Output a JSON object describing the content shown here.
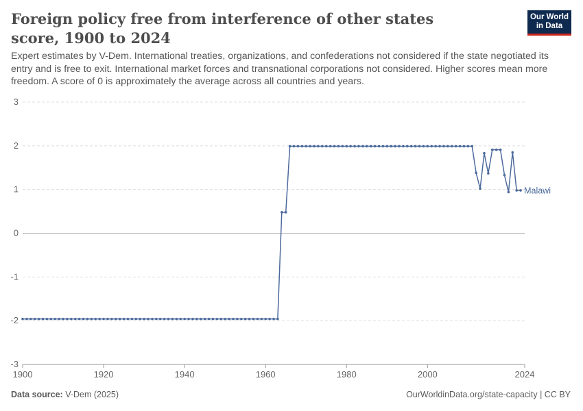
{
  "header": {
    "title": "Foreign policy free from interference of other states score, 1900 to 2024",
    "subtitle": "Expert estimates by V-Dem. International treaties, organizations, and confederations not considered if the state negotiated its entry and is free to exit. International market forces and transnational corporations not considered. Higher scores mean more freedom. A score of 0 is approximately the average across all countries and years.",
    "logo_line1": "Our World",
    "logo_line2": "in Data"
  },
  "footer": {
    "source_label": "Data source:",
    "source_value": "V-Dem (2025)",
    "credit": "OurWorldinData.org/state-capacity | CC BY"
  },
  "colors": {
    "series": "#4c6a9c",
    "grid": "#dddddd",
    "zero_line": "#b3b3b3",
    "text": "#666666",
    "logo_bg": "#0f2a4f",
    "logo_accent": "#ce261e"
  },
  "chart_data": {
    "type": "line",
    "title": "Foreign policy free from interference of other states score, 1900 to 2024",
    "xlabel": "",
    "ylabel": "",
    "xlim": [
      1900,
      2024
    ],
    "ylim": [
      -3,
      3
    ],
    "x_ticks": [
      1900,
      1920,
      1940,
      1960,
      1980,
      2000,
      2024
    ],
    "y_ticks": [
      -3,
      -2,
      -1,
      0,
      1,
      2,
      3
    ],
    "grid": true,
    "legend": "end-of-line label",
    "series": [
      {
        "name": "Malawi",
        "points": [
          [
            1900,
            -1.96
          ],
          [
            1901,
            -1.96
          ],
          [
            1902,
            -1.96
          ],
          [
            1903,
            -1.96
          ],
          [
            1904,
            -1.96
          ],
          [
            1905,
            -1.96
          ],
          [
            1906,
            -1.96
          ],
          [
            1907,
            -1.96
          ],
          [
            1908,
            -1.96
          ],
          [
            1909,
            -1.96
          ],
          [
            1910,
            -1.96
          ],
          [
            1911,
            -1.96
          ],
          [
            1912,
            -1.96
          ],
          [
            1913,
            -1.96
          ],
          [
            1914,
            -1.96
          ],
          [
            1915,
            -1.96
          ],
          [
            1916,
            -1.96
          ],
          [
            1917,
            -1.96
          ],
          [
            1918,
            -1.96
          ],
          [
            1919,
            -1.96
          ],
          [
            1920,
            -1.96
          ],
          [
            1921,
            -1.96
          ],
          [
            1922,
            -1.96
          ],
          [
            1923,
            -1.96
          ],
          [
            1924,
            -1.96
          ],
          [
            1925,
            -1.96
          ],
          [
            1926,
            -1.96
          ],
          [
            1927,
            -1.96
          ],
          [
            1928,
            -1.96
          ],
          [
            1929,
            -1.96
          ],
          [
            1930,
            -1.96
          ],
          [
            1931,
            -1.96
          ],
          [
            1932,
            -1.96
          ],
          [
            1933,
            -1.96
          ],
          [
            1934,
            -1.96
          ],
          [
            1935,
            -1.96
          ],
          [
            1936,
            -1.96
          ],
          [
            1937,
            -1.96
          ],
          [
            1938,
            -1.96
          ],
          [
            1939,
            -1.96
          ],
          [
            1940,
            -1.96
          ],
          [
            1941,
            -1.96
          ],
          [
            1942,
            -1.96
          ],
          [
            1943,
            -1.96
          ],
          [
            1944,
            -1.96
          ],
          [
            1945,
            -1.96
          ],
          [
            1946,
            -1.96
          ],
          [
            1947,
            -1.96
          ],
          [
            1948,
            -1.96
          ],
          [
            1949,
            -1.96
          ],
          [
            1950,
            -1.96
          ],
          [
            1951,
            -1.96
          ],
          [
            1952,
            -1.96
          ],
          [
            1953,
            -1.96
          ],
          [
            1954,
            -1.96
          ],
          [
            1955,
            -1.96
          ],
          [
            1956,
            -1.96
          ],
          [
            1957,
            -1.96
          ],
          [
            1958,
            -1.96
          ],
          [
            1959,
            -1.96
          ],
          [
            1960,
            -1.96
          ],
          [
            1961,
            -1.96
          ],
          [
            1962,
            -1.96
          ],
          [
            1963,
            -1.96
          ],
          [
            1964,
            0.48
          ],
          [
            1965,
            0.48
          ],
          [
            1966,
            1.99
          ],
          [
            1967,
            1.99
          ],
          [
            1968,
            1.99
          ],
          [
            1969,
            1.99
          ],
          [
            1970,
            1.99
          ],
          [
            1971,
            1.99
          ],
          [
            1972,
            1.99
          ],
          [
            1973,
            1.99
          ],
          [
            1974,
            1.99
          ],
          [
            1975,
            1.99
          ],
          [
            1976,
            1.99
          ],
          [
            1977,
            1.99
          ],
          [
            1978,
            1.99
          ],
          [
            1979,
            1.99
          ],
          [
            1980,
            1.99
          ],
          [
            1981,
            1.99
          ],
          [
            1982,
            1.99
          ],
          [
            1983,
            1.99
          ],
          [
            1984,
            1.99
          ],
          [
            1985,
            1.99
          ],
          [
            1986,
            1.99
          ],
          [
            1987,
            1.99
          ],
          [
            1988,
            1.99
          ],
          [
            1989,
            1.99
          ],
          [
            1990,
            1.99
          ],
          [
            1991,
            1.99
          ],
          [
            1992,
            1.99
          ],
          [
            1993,
            1.99
          ],
          [
            1994,
            1.99
          ],
          [
            1995,
            1.99
          ],
          [
            1996,
            1.99
          ],
          [
            1997,
            1.99
          ],
          [
            1998,
            1.99
          ],
          [
            1999,
            1.99
          ],
          [
            2000,
            1.99
          ],
          [
            2001,
            1.99
          ],
          [
            2002,
            1.99
          ],
          [
            2003,
            1.99
          ],
          [
            2004,
            1.99
          ],
          [
            2005,
            1.99
          ],
          [
            2006,
            1.99
          ],
          [
            2007,
            1.99
          ],
          [
            2008,
            1.99
          ],
          [
            2009,
            1.99
          ],
          [
            2010,
            1.99
          ],
          [
            2011,
            1.99
          ],
          [
            2012,
            1.38
          ],
          [
            2013,
            1.02
          ],
          [
            2014,
            1.83
          ],
          [
            2015,
            1.37
          ],
          [
            2016,
            1.91
          ],
          [
            2017,
            1.91
          ],
          [
            2018,
            1.91
          ],
          [
            2019,
            1.33
          ],
          [
            2020,
            0.94
          ],
          [
            2021,
            1.85
          ],
          [
            2022,
            0.98
          ],
          [
            2023,
            0.98
          ]
        ]
      }
    ]
  }
}
